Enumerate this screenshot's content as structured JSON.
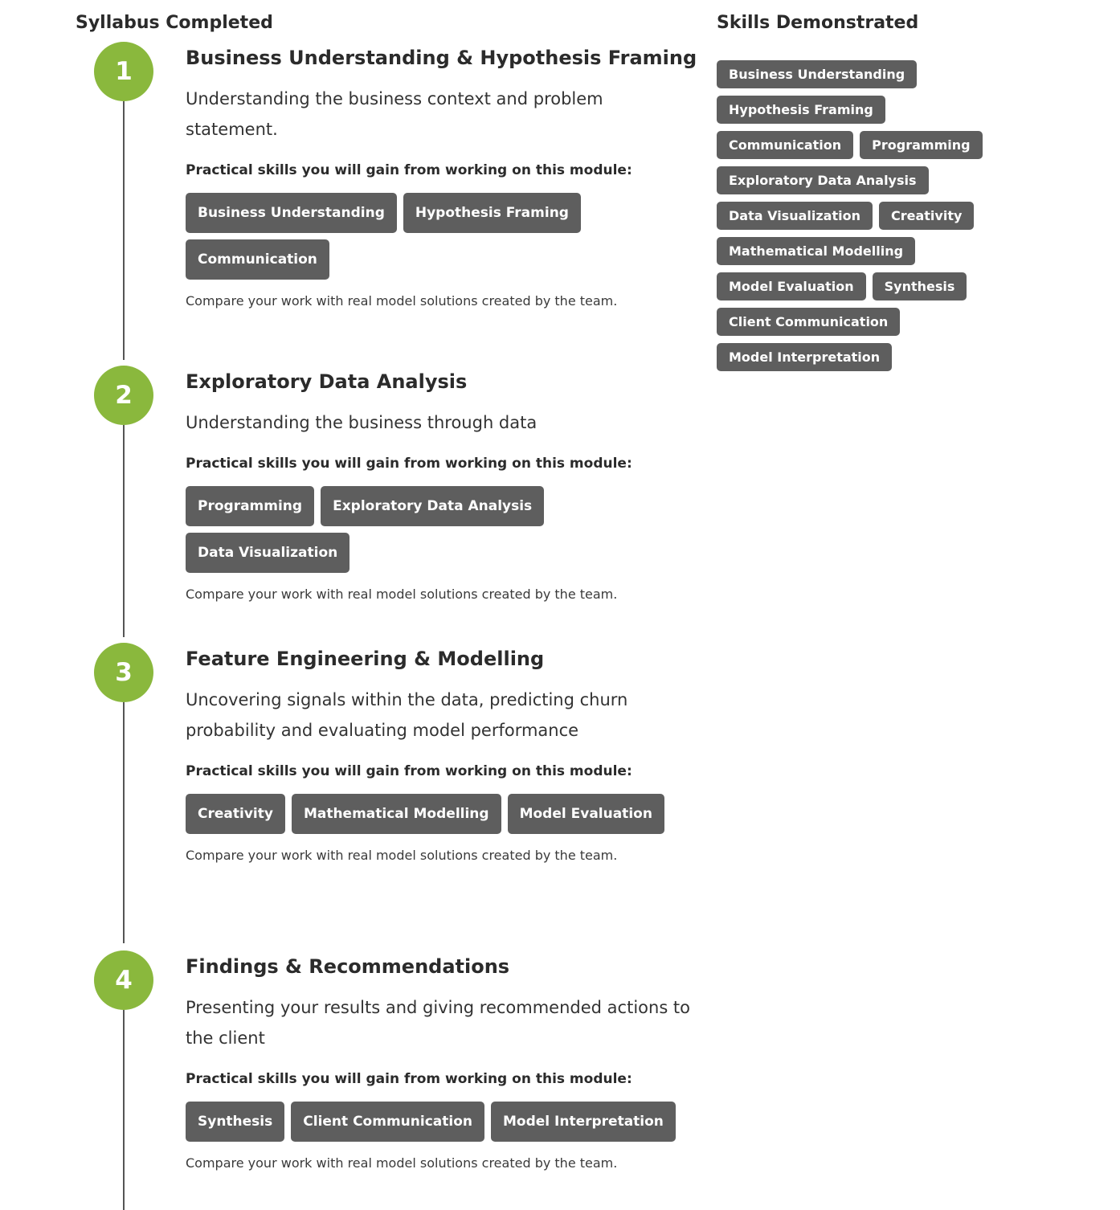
{
  "syllabus": {
    "heading": "Syllabus Completed",
    "modules": [
      {
        "number": "1",
        "title": "Business Understanding & Hypothesis Framing",
        "description": "Understanding the business context and problem statement.",
        "skills_label": "Practical skills you will gain from working on this module:",
        "skills": [
          "Business Understanding",
          "Hypothesis Framing",
          "Communication"
        ],
        "note": "Compare your work with real model solutions created by the team."
      },
      {
        "number": "2",
        "title": "Exploratory Data Analysis",
        "description": "Understanding the business through data",
        "skills_label": "Practical skills you will gain from working on this module:",
        "skills": [
          "Programming",
          "Exploratory Data Analysis",
          "Data Visualization"
        ],
        "note": "Compare your work with real model solutions created by the team."
      },
      {
        "number": "3",
        "title": "Feature Engineering & Modelling",
        "description": "Uncovering signals within the data, predicting churn probability and evaluating model performance",
        "skills_label": "Practical skills you will gain from working on this module:",
        "skills": [
          "Creativity",
          "Mathematical Modelling",
          "Model Evaluation"
        ],
        "note": "Compare your work with real model solutions created by the team."
      },
      {
        "number": "4",
        "title": "Findings & Recommendations",
        "description": "Presenting your results and giving recommended actions to the client",
        "skills_label": "Practical skills you will gain from working on this module:",
        "skills": [
          "Synthesis",
          "Client Communication",
          "Model Interpretation"
        ],
        "note": "Compare your work with real model solutions created by the team."
      }
    ]
  },
  "skills_demonstrated": {
    "heading": "Skills Demonstrated",
    "skills": [
      "Business Understanding",
      "Hypothesis Framing",
      "Communication",
      "Programming",
      "Exploratory Data Analysis",
      "Data Visualization",
      "Creativity",
      "Mathematical Modelling",
      "Model Evaluation",
      "Synthesis",
      "Client Communication",
      "Model Interpretation"
    ]
  },
  "colors": {
    "accent": "#8ab83d",
    "chip": "#5e5e5e",
    "text": "#2b2b2b"
  }
}
